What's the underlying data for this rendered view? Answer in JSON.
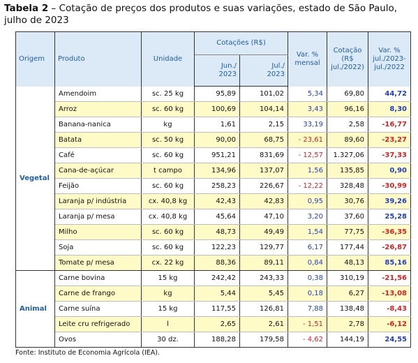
{
  "title": {
    "label": "Tabela 2",
    "text": "– Cotação de preços dos produtos e suas variações, estado de São Paulo, julho de 2023"
  },
  "table": {
    "headers": {
      "origem": "Origem",
      "produto": "Produto",
      "unidade": "Unidade",
      "cotacoes": "Cotações (R$)",
      "jun": "Jun./\n2023",
      "jul": "Jul./\n2023",
      "var_mensal": "Var. %\nmensal",
      "cotacao_2022": "Cotação\n(R$\njul./2022)",
      "var_anual": "Var. %\njul./2023-\njul./2022"
    },
    "groups": [
      {
        "origem": "Vegetal",
        "rows": [
          [
            "Amendoim",
            "sc. 25 kg",
            "95,89",
            "101,02",
            "5,34",
            "69,80",
            "44,72"
          ],
          [
            "Arroz",
            "sc. 60 kg",
            "100,69",
            "104,14",
            "3,43",
            "96,16",
            "8,30"
          ],
          [
            "Banana-nanica",
            "kg",
            "1,61",
            "2,15",
            "33,19",
            "2,58",
            "-16,77"
          ],
          [
            "Batata",
            "sc. 50 kg",
            "90,00",
            "68,75",
            "- 23,61",
            "89,60",
            "-23,27"
          ],
          [
            "Café",
            "sc. 60 kg",
            "951,21",
            "831,69",
            "- 12,57",
            "1.327,06",
            "-37,33"
          ],
          [
            "Cana-de-açúcar",
            "t campo",
            "134,96",
            "137,07",
            "1,56",
            "135,85",
            "0,90"
          ],
          [
            "Feijão",
            "sc. 60 kg",
            "258,23",
            "226,67",
            "- 12,22",
            "328,48",
            "-30,99"
          ],
          [
            "Laranja p/ indústria",
            "cx. 40,8 kg",
            "42,43",
            "42,83",
            "0,95",
            "30,76",
            "39,26"
          ],
          [
            "Laranja p/ mesa",
            "cx. 40,8 kg",
            "45,64",
            "47,10",
            "3,20",
            "37,60",
            "25,28"
          ],
          [
            "Milho",
            "sc. 60 kg",
            "48,73",
            "49,49",
            "1,54",
            "77,75",
            "-36,35"
          ],
          [
            "Soja",
            "sc. 60 kg",
            "122,23",
            "129,77",
            "6,17",
            "177,44",
            "-26,87"
          ],
          [
            "Tomate p/ mesa",
            "cx. 22 kg",
            "88,36",
            "89,11",
            "0,84",
            "48,13",
            "85,16"
          ]
        ]
      },
      {
        "origem": "Animal",
        "rows": [
          [
            "Carne bovina",
            "15 kg",
            "242,42",
            "243,33",
            "0,38",
            "310,19",
            "-21,56"
          ],
          [
            "Carne de frango",
            "kg",
            "5,44",
            "5,45",
            "0,18",
            "6,27",
            "-13,08"
          ],
          [
            "Carne suína",
            "15 kg",
            "117,55",
            "126,81",
            "7,88",
            "138,48",
            "-8,43"
          ],
          [
            "Leite cru refrigerado",
            "l",
            "2,65",
            "2,61",
            "- 1,51",
            "2,78",
            "-6,12"
          ],
          [
            "Ovos",
            "30 dz.",
            "188,28",
            "179,58",
            "- 4,62",
            "144,19",
            "24,55"
          ]
        ]
      }
    ]
  },
  "footer": "Fonte: Instituto de Economia Agrícola (IEA)."
}
